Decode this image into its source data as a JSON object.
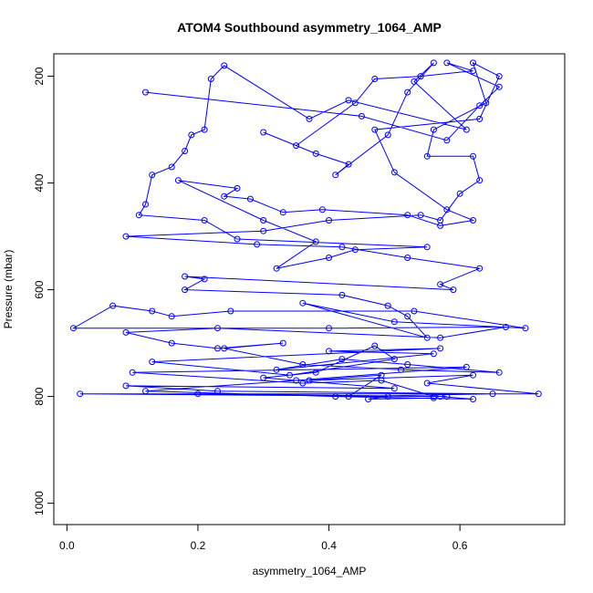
{
  "chart_data": {
    "type": "line",
    "title": "ATOM4 Southbound asymmetry_1064_AMP",
    "xlabel": "asymmetry_1064_AMP",
    "ylabel": "Pressure (mbar)",
    "xlim": [
      -0.02,
      0.76
    ],
    "ylim": [
      1040,
      158
    ],
    "y_reversed": true,
    "x_ticks": [
      "0.0",
      "0.2",
      "0.4",
      "0.6"
    ],
    "y_ticks": [
      "200",
      "400",
      "600",
      "800",
      "1000"
    ],
    "grid": false,
    "legend": "none",
    "series": [
      {
        "marker": "open-circle",
        "line": true,
        "color": "#0000ff",
        "x": [
          0.12,
          0.45,
          0.58,
          0.63,
          0.66,
          0.58,
          0.62,
          0.54,
          0.47,
          0.44,
          0.35,
          0.3,
          0.38,
          0.43,
          0.41,
          0.49,
          0.52,
          0.56,
          0.53,
          0.61,
          0.43,
          0.37,
          0.24,
          0.22,
          0.21,
          0.19,
          0.18,
          0.16,
          0.13,
          0.12,
          0.11,
          0.21,
          0.26,
          0.55,
          0.44,
          0.4,
          0.32,
          0.38,
          0.3,
          0.17,
          0.26,
          0.24,
          0.28,
          0.33,
          0.39,
          0.52,
          0.57,
          0.62,
          0.58,
          0.5,
          0.47,
          0.63,
          0.66,
          0.62,
          0.64,
          0.56,
          0.55,
          0.62,
          0.63,
          0.6,
          0.57,
          0.54,
          0.4,
          0.3,
          0.09,
          0.29,
          0.42,
          0.52,
          0.63,
          0.57,
          0.59,
          0.18,
          0.21,
          0.18,
          0.42,
          0.49,
          0.52,
          0.55,
          0.36,
          0.5,
          0.7,
          0.53,
          0.25,
          0.16,
          0.13,
          0.07,
          0.01,
          0.4,
          0.67,
          0.57,
          0.23,
          0.09,
          0.16,
          0.23,
          0.33,
          0.24,
          0.36,
          0.51,
          0.66,
          0.52,
          0.42,
          0.32,
          0.56,
          0.4,
          0.57,
          0.13,
          0.34,
          0.5,
          0.47,
          0.38,
          0.3,
          0.5,
          0.09,
          0.23,
          0.65,
          0.43,
          0.48,
          0.37,
          0.62,
          0.55,
          0.72,
          0.02,
          0.56,
          0.48,
          0.36,
          0.1,
          0.61,
          0.35,
          0.12,
          0.41,
          0.62,
          0.57,
          0.58,
          0.2,
          0.49,
          0.46,
          0.56
        ],
        "y": [
          230,
          275,
          320,
          255,
          220,
          175,
          190,
          200,
          205,
          250,
          330,
          305,
          345,
          365,
          385,
          310,
          230,
          175,
          210,
          300,
          245,
          280,
          180,
          205,
          300,
          310,
          340,
          370,
          385,
          440,
          460,
          470,
          505,
          520,
          525,
          540,
          560,
          510,
          470,
          395,
          410,
          425,
          430,
          455,
          450,
          460,
          480,
          470,
          450,
          380,
          300,
          280,
          200,
          175,
          250,
          300,
          350,
          350,
          395,
          420,
          470,
          460,
          470,
          490,
          500,
          515,
          520,
          540,
          560,
          590,
          600,
          575,
          580,
          600,
          610,
          630,
          650,
          690,
          625,
          660,
          672,
          640,
          640,
          650,
          640,
          630,
          672,
          672,
          670,
          690,
          672,
          680,
          700,
          710,
          700,
          710,
          740,
          750,
          755,
          740,
          730,
          750,
          720,
          715,
          710,
          735,
          760,
          730,
          705,
          755,
          765,
          785,
          780,
          790,
          795,
          800,
          760,
          770,
          760,
          775,
          795,
          795,
          800,
          770,
          775,
          755,
          745,
          770,
          790,
          800,
          805,
          800,
          800,
          795,
          800,
          805,
          803
        ]
      }
    ]
  }
}
